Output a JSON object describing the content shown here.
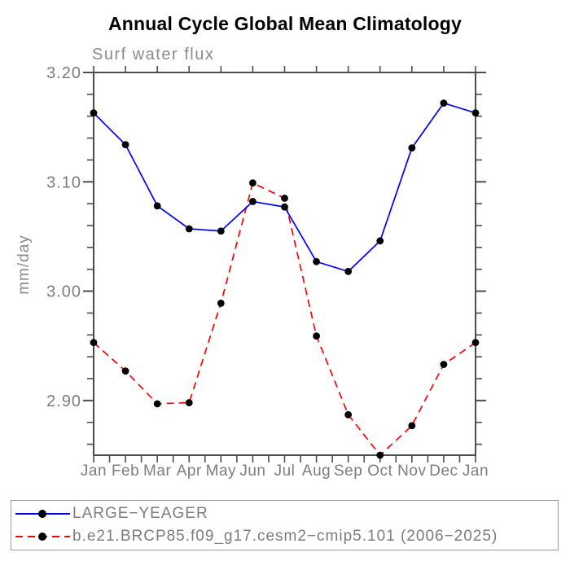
{
  "chart_data": {
    "type": "line",
    "title": "Annual Cycle Global Mean Climatology",
    "subtitle": "Surf water flux",
    "xlabel": "",
    "ylabel": "mm/day",
    "x_categories": [
      "Jan",
      "Feb",
      "Mar",
      "Apr",
      "May",
      "Jun",
      "Jul",
      "Aug",
      "Sep",
      "Oct",
      "Nov",
      "Dec",
      "Jan"
    ],
    "series": [
      {
        "name": "LARGE−YEAGER",
        "line_style": "solid",
        "color": "#0000ff",
        "marker": "filled-circle",
        "marker_color": "#000000",
        "values": [
          3.163,
          3.134,
          3.078,
          3.057,
          3.055,
          3.082,
          3.077,
          3.027,
          3.018,
          3.046,
          3.131,
          3.172,
          3.163
        ]
      },
      {
        "name": "b.e21.BRCP85.f09_g17.cesm2−cmip5.101 (2006−2025)",
        "line_style": "dashed",
        "color": "#ff0000",
        "marker": "filled-circle",
        "marker_color": "#000000",
        "values": [
          2.953,
          2.927,
          2.897,
          2.898,
          2.989,
          3.099,
          3.085,
          2.959,
          2.887,
          2.85,
          2.877,
          2.933,
          2.953
        ]
      }
    ],
    "ylim": [
      2.85,
      3.2
    ],
    "y_ticks": [
      2.9,
      3.0,
      3.1,
      3.2
    ],
    "y_tick_labels": [
      "2.90",
      "3.00",
      "3.10",
      "3.20"
    ],
    "y_minor_tick_step": 0.02,
    "grid": "off",
    "legend_position": "bottom-outside-box"
  },
  "colors": {
    "series_blue": "#0000ff",
    "series_red": "#ff0000",
    "marker_black": "#000000",
    "axis": "#4d4d4d",
    "label_gray": "#7d7d7d",
    "legend_border": "#999999",
    "title_black": "#000000",
    "background": "#ffffff"
  }
}
